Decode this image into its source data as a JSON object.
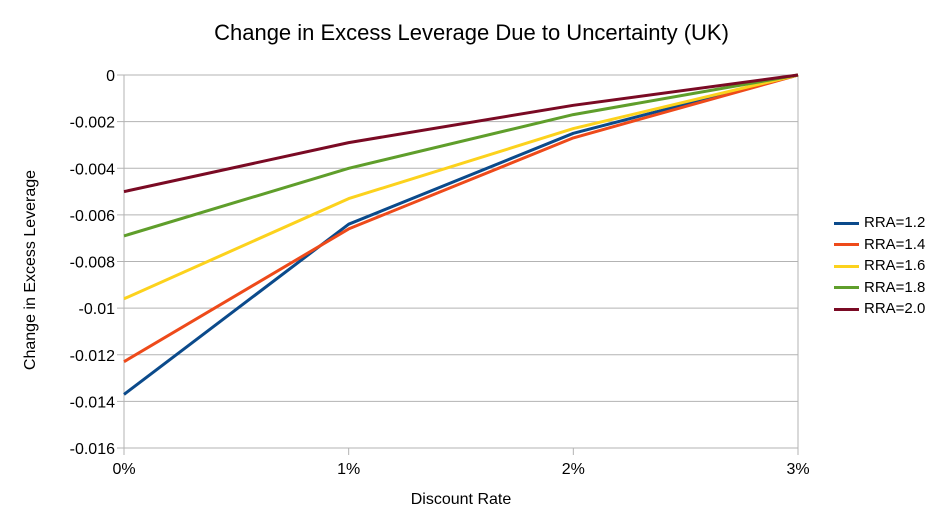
{
  "chart_data": {
    "type": "line",
    "title": "Change in Excess Leverage Due to Uncertainty (UK)",
    "xlabel": "Discount Rate",
    "ylabel": "Change in Excess Leverage",
    "categories": [
      "0%",
      "1%",
      "2%",
      "3%"
    ],
    "ylim": [
      -0.016,
      0
    ],
    "yticks": [
      0,
      -0.002,
      -0.004,
      -0.006,
      -0.008,
      -0.01,
      -0.012,
      -0.014,
      -0.016
    ],
    "ytick_labels": [
      "0",
      "-0.002",
      "-0.004",
      "-0.006",
      "-0.008",
      "-0.01",
      "-0.012",
      "-0.014",
      "-0.016"
    ],
    "grid": true,
    "legend_position": "right",
    "series": [
      {
        "name": "RRA=1.2",
        "color": "#0b4a8b",
        "values": [
          -0.0137,
          -0.0064,
          -0.0025,
          0
        ]
      },
      {
        "name": "RRA=1.4",
        "color": "#ee4a1a",
        "values": [
          -0.0123,
          -0.0066,
          -0.0027,
          0
        ]
      },
      {
        "name": "RRA=1.6",
        "color": "#fcd21d",
        "values": [
          -0.0096,
          -0.0053,
          -0.0023,
          0
        ]
      },
      {
        "name": "RRA=1.8",
        "color": "#5f9e2b",
        "values": [
          -0.0069,
          -0.004,
          -0.0017,
          0
        ]
      },
      {
        "name": "RRA=2.0",
        "color": "#7a0a24",
        "values": [
          -0.005,
          -0.0029,
          -0.0013,
          0
        ]
      }
    ]
  }
}
